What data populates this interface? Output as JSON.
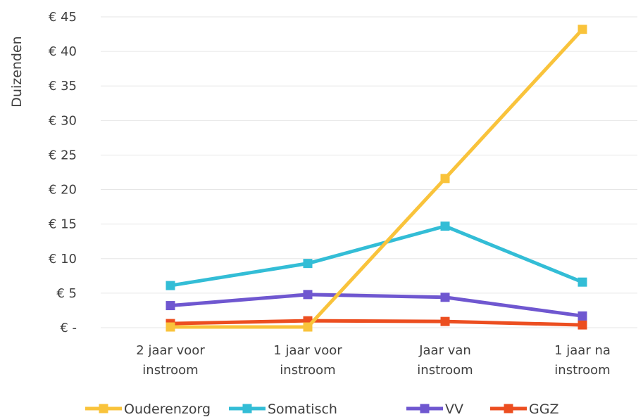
{
  "chart_data": {
    "type": "line",
    "ylabel": "Duizenden",
    "categories": [
      [
        "2 jaar voor",
        "instroom"
      ],
      [
        "1 jaar voor",
        "instroom"
      ],
      [
        "Jaar van",
        "instroom"
      ],
      [
        "1 jaar na",
        "instroom"
      ]
    ],
    "ylim": [
      0,
      45
    ],
    "yticks": [
      {
        "value": 0,
        "label": "€ -"
      },
      {
        "value": 5,
        "label": "€ 5"
      },
      {
        "value": 10,
        "label": "€ 10"
      },
      {
        "value": 15,
        "label": "€ 15"
      },
      {
        "value": 20,
        "label": "€ 20"
      },
      {
        "value": 25,
        "label": "€ 25"
      },
      {
        "value": 30,
        "label": "€ 30"
      },
      {
        "value": 35,
        "label": "€ 35"
      },
      {
        "value": 40,
        "label": "€ 40"
      },
      {
        "value": 45,
        "label": "€ 45"
      }
    ],
    "grid": true,
    "legend_position": "bottom",
    "series": [
      {
        "name": "Ouderenzorg",
        "color": "#f9c33b",
        "values": [
          0.1,
          0.1,
          21.6,
          43.2
        ]
      },
      {
        "name": "Somatisch",
        "color": "#33bdd6",
        "values": [
          6.1,
          9.3,
          14.7,
          6.6
        ]
      },
      {
        "name": "VV",
        "color": "#6f57d0",
        "values": [
          3.2,
          4.8,
          4.4,
          1.7
        ]
      },
      {
        "name": "GGZ",
        "color": "#ec4e20",
        "values": [
          0.6,
          1.0,
          0.9,
          0.4
        ]
      }
    ]
  }
}
